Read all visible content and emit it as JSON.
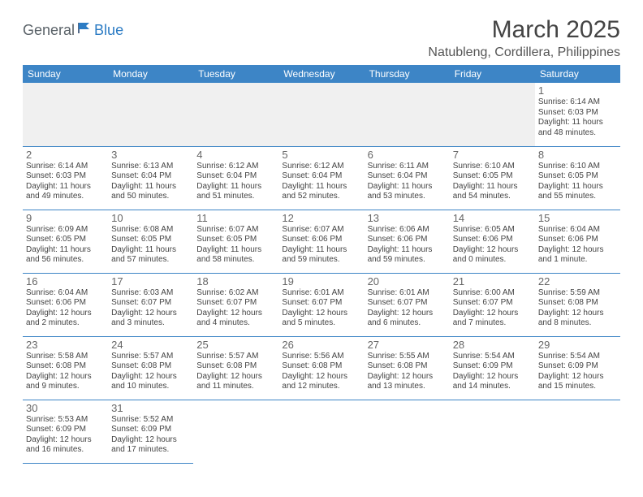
{
  "logo": {
    "text1": "General",
    "text2": "Blue"
  },
  "title": "March 2025",
  "location": "Natubleng, Cordillera, Philippines",
  "colors": {
    "header_bg": "#3d85c6",
    "header_text": "#ffffff",
    "border": "#3d85c6",
    "body_text": "#444444",
    "leading_bg": "#f0f0f0"
  },
  "typography": {
    "title_fontsize": 30,
    "location_fontsize": 16,
    "dayheader_fontsize": 12,
    "daynum_fontsize": 13,
    "cell_fontsize": 10
  },
  "day_headers": [
    "Sunday",
    "Monday",
    "Tuesday",
    "Wednesday",
    "Thursday",
    "Friday",
    "Saturday"
  ],
  "weeks": [
    [
      null,
      null,
      null,
      null,
      null,
      null,
      {
        "day": "1",
        "sunrise": "Sunrise: 6:14 AM",
        "sunset": "Sunset: 6:03 PM",
        "daylight": "Daylight: 11 hours and 48 minutes."
      }
    ],
    [
      {
        "day": "2",
        "sunrise": "Sunrise: 6:14 AM",
        "sunset": "Sunset: 6:03 PM",
        "daylight": "Daylight: 11 hours and 49 minutes."
      },
      {
        "day": "3",
        "sunrise": "Sunrise: 6:13 AM",
        "sunset": "Sunset: 6:04 PM",
        "daylight": "Daylight: 11 hours and 50 minutes."
      },
      {
        "day": "4",
        "sunrise": "Sunrise: 6:12 AM",
        "sunset": "Sunset: 6:04 PM",
        "daylight": "Daylight: 11 hours and 51 minutes."
      },
      {
        "day": "5",
        "sunrise": "Sunrise: 6:12 AM",
        "sunset": "Sunset: 6:04 PM",
        "daylight": "Daylight: 11 hours and 52 minutes."
      },
      {
        "day": "6",
        "sunrise": "Sunrise: 6:11 AM",
        "sunset": "Sunset: 6:04 PM",
        "daylight": "Daylight: 11 hours and 53 minutes."
      },
      {
        "day": "7",
        "sunrise": "Sunrise: 6:10 AM",
        "sunset": "Sunset: 6:05 PM",
        "daylight": "Daylight: 11 hours and 54 minutes."
      },
      {
        "day": "8",
        "sunrise": "Sunrise: 6:10 AM",
        "sunset": "Sunset: 6:05 PM",
        "daylight": "Daylight: 11 hours and 55 minutes."
      }
    ],
    [
      {
        "day": "9",
        "sunrise": "Sunrise: 6:09 AM",
        "sunset": "Sunset: 6:05 PM",
        "daylight": "Daylight: 11 hours and 56 minutes."
      },
      {
        "day": "10",
        "sunrise": "Sunrise: 6:08 AM",
        "sunset": "Sunset: 6:05 PM",
        "daylight": "Daylight: 11 hours and 57 minutes."
      },
      {
        "day": "11",
        "sunrise": "Sunrise: 6:07 AM",
        "sunset": "Sunset: 6:05 PM",
        "daylight": "Daylight: 11 hours and 58 minutes."
      },
      {
        "day": "12",
        "sunrise": "Sunrise: 6:07 AM",
        "sunset": "Sunset: 6:06 PM",
        "daylight": "Daylight: 11 hours and 59 minutes."
      },
      {
        "day": "13",
        "sunrise": "Sunrise: 6:06 AM",
        "sunset": "Sunset: 6:06 PM",
        "daylight": "Daylight: 11 hours and 59 minutes."
      },
      {
        "day": "14",
        "sunrise": "Sunrise: 6:05 AM",
        "sunset": "Sunset: 6:06 PM",
        "daylight": "Daylight: 12 hours and 0 minutes."
      },
      {
        "day": "15",
        "sunrise": "Sunrise: 6:04 AM",
        "sunset": "Sunset: 6:06 PM",
        "daylight": "Daylight: 12 hours and 1 minute."
      }
    ],
    [
      {
        "day": "16",
        "sunrise": "Sunrise: 6:04 AM",
        "sunset": "Sunset: 6:06 PM",
        "daylight": "Daylight: 12 hours and 2 minutes."
      },
      {
        "day": "17",
        "sunrise": "Sunrise: 6:03 AM",
        "sunset": "Sunset: 6:07 PM",
        "daylight": "Daylight: 12 hours and 3 minutes."
      },
      {
        "day": "18",
        "sunrise": "Sunrise: 6:02 AM",
        "sunset": "Sunset: 6:07 PM",
        "daylight": "Daylight: 12 hours and 4 minutes."
      },
      {
        "day": "19",
        "sunrise": "Sunrise: 6:01 AM",
        "sunset": "Sunset: 6:07 PM",
        "daylight": "Daylight: 12 hours and 5 minutes."
      },
      {
        "day": "20",
        "sunrise": "Sunrise: 6:01 AM",
        "sunset": "Sunset: 6:07 PM",
        "daylight": "Daylight: 12 hours and 6 minutes."
      },
      {
        "day": "21",
        "sunrise": "Sunrise: 6:00 AM",
        "sunset": "Sunset: 6:07 PM",
        "daylight": "Daylight: 12 hours and 7 minutes."
      },
      {
        "day": "22",
        "sunrise": "Sunrise: 5:59 AM",
        "sunset": "Sunset: 6:08 PM",
        "daylight": "Daylight: 12 hours and 8 minutes."
      }
    ],
    [
      {
        "day": "23",
        "sunrise": "Sunrise: 5:58 AM",
        "sunset": "Sunset: 6:08 PM",
        "daylight": "Daylight: 12 hours and 9 minutes."
      },
      {
        "day": "24",
        "sunrise": "Sunrise: 5:57 AM",
        "sunset": "Sunset: 6:08 PM",
        "daylight": "Daylight: 12 hours and 10 minutes."
      },
      {
        "day": "25",
        "sunrise": "Sunrise: 5:57 AM",
        "sunset": "Sunset: 6:08 PM",
        "daylight": "Daylight: 12 hours and 11 minutes."
      },
      {
        "day": "26",
        "sunrise": "Sunrise: 5:56 AM",
        "sunset": "Sunset: 6:08 PM",
        "daylight": "Daylight: 12 hours and 12 minutes."
      },
      {
        "day": "27",
        "sunrise": "Sunrise: 5:55 AM",
        "sunset": "Sunset: 6:08 PM",
        "daylight": "Daylight: 12 hours and 13 minutes."
      },
      {
        "day": "28",
        "sunrise": "Sunrise: 5:54 AM",
        "sunset": "Sunset: 6:09 PM",
        "daylight": "Daylight: 12 hours and 14 minutes."
      },
      {
        "day": "29",
        "sunrise": "Sunrise: 5:54 AM",
        "sunset": "Sunset: 6:09 PM",
        "daylight": "Daylight: 12 hours and 15 minutes."
      }
    ],
    [
      {
        "day": "30",
        "sunrise": "Sunrise: 5:53 AM",
        "sunset": "Sunset: 6:09 PM",
        "daylight": "Daylight: 12 hours and 16 minutes."
      },
      {
        "day": "31",
        "sunrise": "Sunrise: 5:52 AM",
        "sunset": "Sunset: 6:09 PM",
        "daylight": "Daylight: 12 hours and 17 minutes."
      },
      null,
      null,
      null,
      null,
      null
    ]
  ]
}
